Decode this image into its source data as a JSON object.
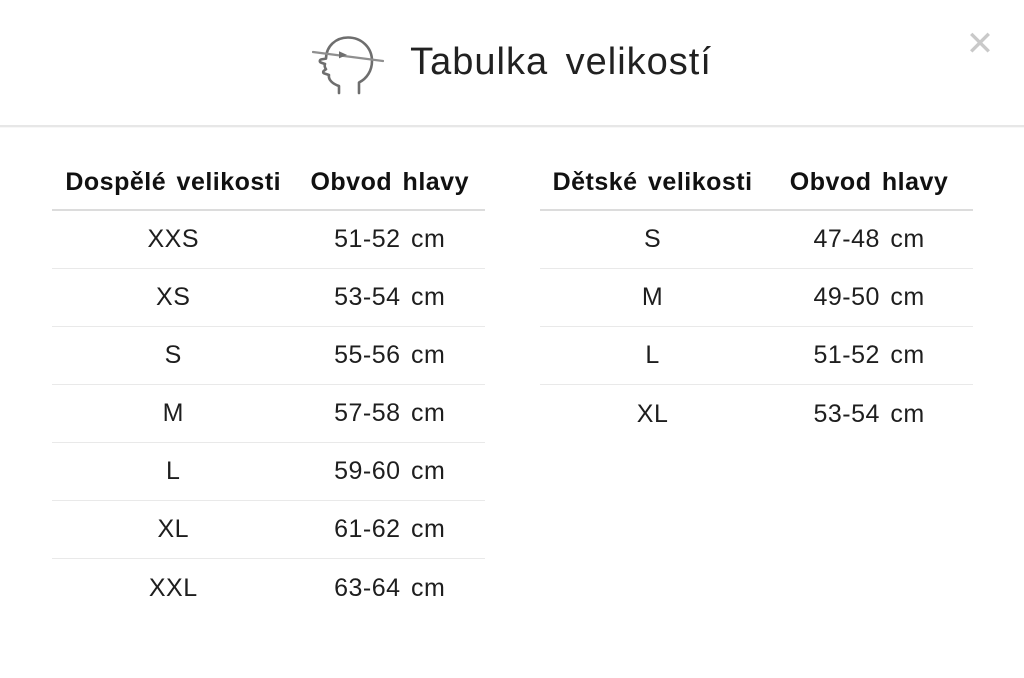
{
  "modal": {
    "title": "Tabulka velikostí",
    "close_glyph": "✕"
  },
  "tables": [
    {
      "id": "adult",
      "columns": [
        "Dospělé velikosti",
        "Obvod hlavy"
      ],
      "rows": [
        [
          "XXS",
          "51-52 cm"
        ],
        [
          "XS",
          "53-54 cm"
        ],
        [
          "S",
          "55-56 cm"
        ],
        [
          "M",
          "57-58 cm"
        ],
        [
          "L",
          "59-60 cm"
        ],
        [
          "XL",
          "61-62 cm"
        ],
        [
          "XXL",
          "63-64 cm"
        ]
      ]
    },
    {
      "id": "children",
      "columns": [
        "Dětské velikosti",
        "Obvod hlavy"
      ],
      "rows": [
        [
          "S",
          "47-48 cm"
        ],
        [
          "M",
          "49-50 cm"
        ],
        [
          "L",
          "51-52 cm"
        ],
        [
          "XL",
          "53-54 cm"
        ]
      ]
    }
  ],
  "colors": {
    "text": "#1e1e1e",
    "header_divider": "#e7e7e7",
    "table_header_divider": "#dcdcdc",
    "row_divider": "#e9e9e9",
    "close_icon": "#c9c9c9",
    "icon_stroke": "#6e6e6e",
    "icon_tape": "#8f8f8f"
  }
}
